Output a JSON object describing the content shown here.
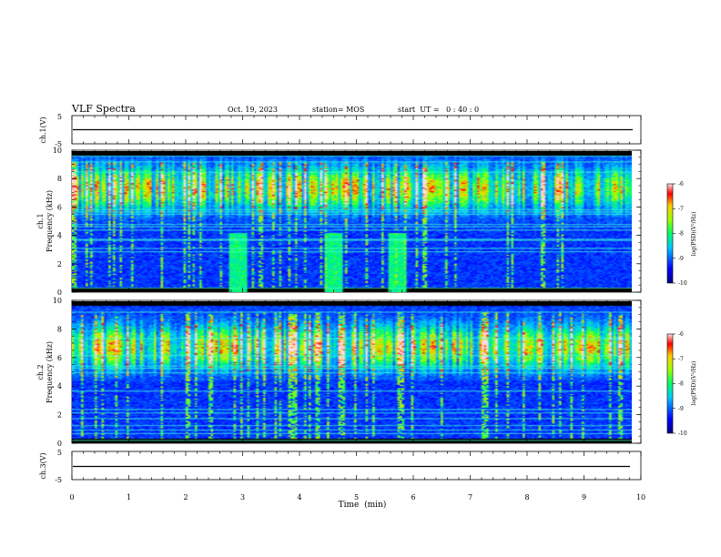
{
  "header": {
    "title": "VLF Spectra",
    "date": "Oct. 19, 2023",
    "station": "station= MOS",
    "start_ut": "start  UT =   0 : 40 : 0"
  },
  "chart_data": [
    {
      "type": "line",
      "panel": "ch1-waveform",
      "ylabel": "ch.1(V)",
      "yticks": [
        "5",
        "-5"
      ],
      "ylim": [
        -5,
        5
      ],
      "xlim": [
        0,
        10
      ],
      "series": [
        {
          "x": [
            0,
            9.85
          ],
          "y": [
            0,
            0
          ]
        }
      ]
    },
    {
      "type": "heatmap",
      "panel": "ch1-spectrogram",
      "ylabel": "ch.1\nFrequency (kHz)",
      "ylim": [
        0,
        10
      ],
      "yticks": [
        "0",
        "2",
        "4",
        "6",
        "8",
        "10"
      ],
      "xlim": [
        0,
        10
      ],
      "data_extent_x": [
        0,
        9.85
      ],
      "colorbar": {
        "label": "log(PSD)(V²/Hz)",
        "range": [
          -10,
          -6
        ],
        "ticks": [
          "-6",
          "-7",
          "-8",
          "-9",
          "-10"
        ]
      },
      "bursts_min": [
        2.9,
        4.6,
        5.7
      ]
    },
    {
      "type": "heatmap",
      "panel": "ch2-spectrogram",
      "ylabel": "ch.2\nFrequency (kHz)",
      "ylim": [
        0,
        10
      ],
      "yticks": [
        "0",
        "2",
        "4",
        "6",
        "8",
        "10"
      ],
      "xlim": [
        0,
        10
      ],
      "data_extent_x": [
        0,
        9.85
      ],
      "colorbar": {
        "label": "log(PSD)(V²/Hz)",
        "range": [
          -10,
          -6
        ],
        "ticks": [
          "-6",
          "-7",
          "-8",
          "-9",
          "-10"
        ]
      }
    },
    {
      "type": "line",
      "panel": "ch3-waveform",
      "ylabel": "ch.3(V)",
      "yticks": [
        "5",
        "-5"
      ],
      "ylim": [
        -5,
        5
      ],
      "xlim": [
        0,
        10
      ],
      "xlabel": "Time  (min)",
      "xticks": [
        "0",
        "1",
        "2",
        "3",
        "4",
        "5",
        "6",
        "7",
        "8",
        "9",
        "10"
      ],
      "series": [
        {
          "x": [
            0,
            9.85
          ],
          "y": [
            0,
            0
          ]
        }
      ]
    }
  ],
  "labels": {
    "ch1_v": "ch.1(V)",
    "ch3_v": "ch.3(V)",
    "ch1_a": "ch.1",
    "ch2_a": "ch.2",
    "freq": "Frequency (kHz)",
    "cb_label": "log(PSD)(V²/Hz)"
  }
}
